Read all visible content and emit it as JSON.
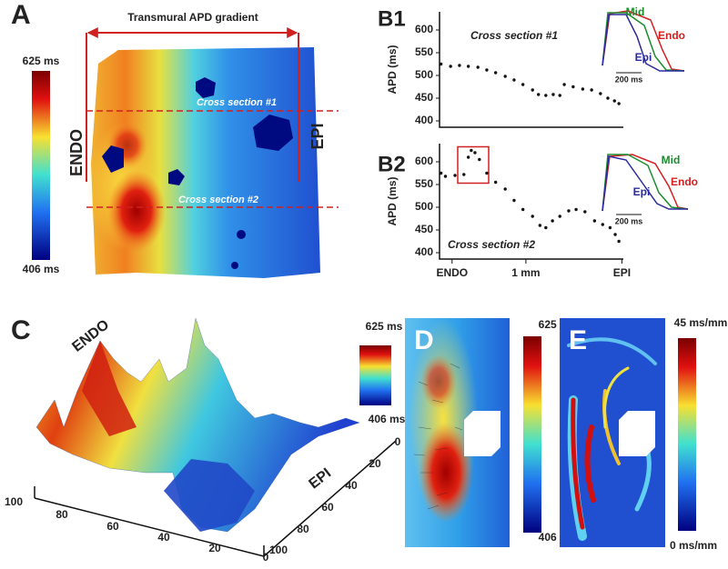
{
  "panel_a": {
    "label": "A",
    "title": "Transmural APD gradient",
    "colorbar_max": "625 ms",
    "colorbar_min": "406 ms",
    "section_1": "Cross section #1",
    "section_2": "Cross section #2",
    "endo": "ENDO",
    "epi": "EPI"
  },
  "chart_data": [
    {
      "type": "scatter",
      "label": "B1",
      "y_label": "APD (ms)",
      "annotation": "Cross section #1",
      "color": "#111111",
      "x": [
        -0.15,
        -0.02,
        0.1,
        0.22,
        0.35,
        0.47,
        0.59,
        0.72,
        0.84,
        0.96,
        1.09,
        1.17,
        1.27,
        1.37,
        1.46,
        1.52,
        1.64,
        1.77,
        1.89,
        2.01,
        2.11,
        2.2,
        2.26
      ],
      "values": [
        525,
        520,
        522,
        520,
        518,
        512,
        506,
        498,
        490,
        480,
        468,
        458,
        456,
        458,
        456,
        480,
        475,
        470,
        468,
        460,
        450,
        444,
        438
      ],
      "xlim": [
        -0.17,
        2.32
      ],
      "ylim": [
        386,
        640
      ],
      "yticks": [
        400,
        450,
        500,
        550,
        600
      ],
      "inset_labels": [
        "Mid",
        "Endo",
        "Epi"
      ],
      "inset_scale": "200 ms"
    },
    {
      "type": "scatter",
      "label": "B2",
      "y_label": "APD (ms)",
      "annotation": "Cross section #2",
      "color": "#111111",
      "x": [
        -0.15,
        -0.09,
        0.04,
        0.16,
        0.22,
        0.26,
        0.31,
        0.37,
        0.47,
        0.59,
        0.72,
        0.84,
        0.96,
        1.09,
        1.19,
        1.27,
        1.36,
        1.46,
        1.58,
        1.68,
        1.8,
        1.93,
        2.04,
        2.14,
        2.21,
        2.26
      ],
      "values": [
        575,
        568,
        570,
        572,
        610,
        625,
        620,
        605,
        575,
        555,
        540,
        515,
        495,
        480,
        460,
        455,
        470,
        480,
        492,
        495,
        490,
        470,
        462,
        455,
        440,
        425
      ],
      "xlim": [
        -0.17,
        2.32
      ],
      "ylim": [
        386,
        640
      ],
      "yticks": [
        400,
        450,
        500,
        550,
        600
      ],
      "xticks": [
        {
          "value": 0,
          "label": "ENDO"
        },
        {
          "value": 1,
          "label": "1 mm"
        },
        {
          "value": 2.3,
          "label": "EPI"
        }
      ],
      "inset_labels": [
        "Mid",
        "Endo",
        "Epi"
      ],
      "inset_scale": "200 ms"
    }
  ],
  "panel_c": {
    "label": "C",
    "endo": "ENDO",
    "epi": "EPI",
    "colorbar_max": "625 ms",
    "colorbar_min": "406 ms",
    "x_ticks": [
      100,
      80,
      60,
      40,
      20,
      0
    ],
    "y_ticks": [
      0,
      20,
      40,
      60,
      80,
      100
    ]
  },
  "panel_d": {
    "label": "D",
    "colorbar_max": "625 ms",
    "colorbar_min": "406 ms"
  },
  "panel_e": {
    "label": "E",
    "colorbar_max": "45 ms/mm",
    "colorbar_min": "0 ms/mm"
  }
}
